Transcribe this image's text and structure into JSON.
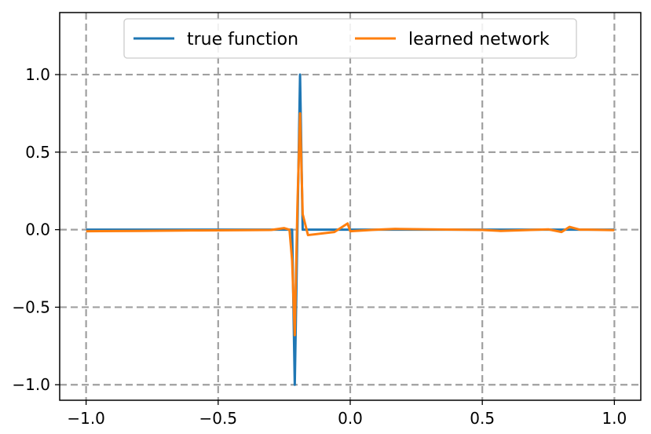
{
  "chart_data": {
    "type": "line",
    "title": "",
    "xlabel": "",
    "ylabel": "",
    "xlim": [
      -1.1,
      1.1
    ],
    "ylim": [
      -1.1,
      1.4
    ],
    "xticks": [
      -1.0,
      -0.5,
      0.0,
      0.5,
      1.0
    ],
    "xtick_labels": [
      "−1.0",
      "−0.5",
      "0.0",
      "0.5",
      "1.0"
    ],
    "yticks": [
      -1.0,
      -0.5,
      0.0,
      0.5,
      1.0
    ],
    "ytick_labels": [
      "−1.0",
      "−0.5",
      "0.0",
      "0.5",
      "1.0"
    ],
    "grid": true,
    "grid_style": "dashed",
    "legend_position": "upper center",
    "series": [
      {
        "name": "true function",
        "color": "#1f77b4",
        "x": [
          -1.0,
          -0.25,
          -0.22,
          -0.215,
          -0.21,
          -0.2,
          -0.195,
          -0.19,
          -0.18,
          -0.17,
          0.0,
          0.5,
          1.0
        ],
        "y": [
          0.0,
          0.0,
          0.0,
          -0.5,
          -1.0,
          0.0,
          0.5,
          1.0,
          0.0,
          0.0,
          0.0,
          0.0,
          0.0
        ]
      },
      {
        "name": "learned network",
        "color": "#ff7f0e",
        "x": [
          -1.0,
          -0.8,
          -0.6,
          -0.4,
          -0.3,
          -0.25,
          -0.23,
          -0.22,
          -0.21,
          -0.2,
          -0.19,
          -0.18,
          -0.16,
          -0.06,
          -0.01,
          0.0,
          0.1,
          0.17,
          0.3,
          0.5,
          0.57,
          0.75,
          0.8,
          0.83,
          0.87,
          0.9,
          1.0
        ],
        "y": [
          -0.01,
          -0.008,
          -0.005,
          -0.003,
          -0.002,
          0.01,
          0.0,
          -0.2,
          -0.68,
          0.15,
          0.75,
          0.1,
          -0.035,
          -0.015,
          0.04,
          -0.01,
          0.0,
          0.005,
          0.002,
          -0.002,
          -0.008,
          0.002,
          -0.015,
          0.018,
          0.0,
          0.0,
          -0.003
        ]
      }
    ]
  }
}
